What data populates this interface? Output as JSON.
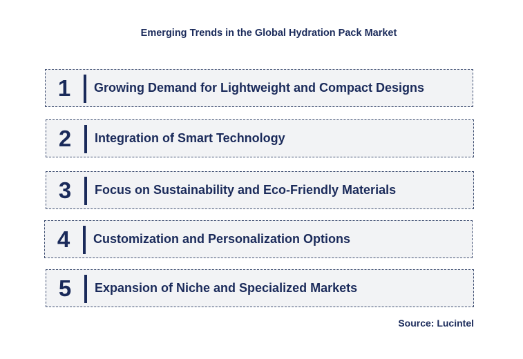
{
  "title": "Emerging Trends in the Global Hydration Pack Market",
  "trends": [
    {
      "number": "1",
      "label": "Growing Demand for Lightweight and Compact Designs"
    },
    {
      "number": "2",
      "label": "Integration of Smart Technology"
    },
    {
      "number": "3",
      "label": "Focus on Sustainability and Eco-Friendly Materials"
    },
    {
      "number": "4",
      "label": "Customization and Personalization Options"
    },
    {
      "number": "5",
      "label": "Expansion of Niche and Specialized Markets"
    }
  ],
  "source": "Source: Lucintel",
  "colors": {
    "text": "#1a2a5a",
    "box_background": "#f2f3f5",
    "box_border": "#3a4a6e"
  }
}
